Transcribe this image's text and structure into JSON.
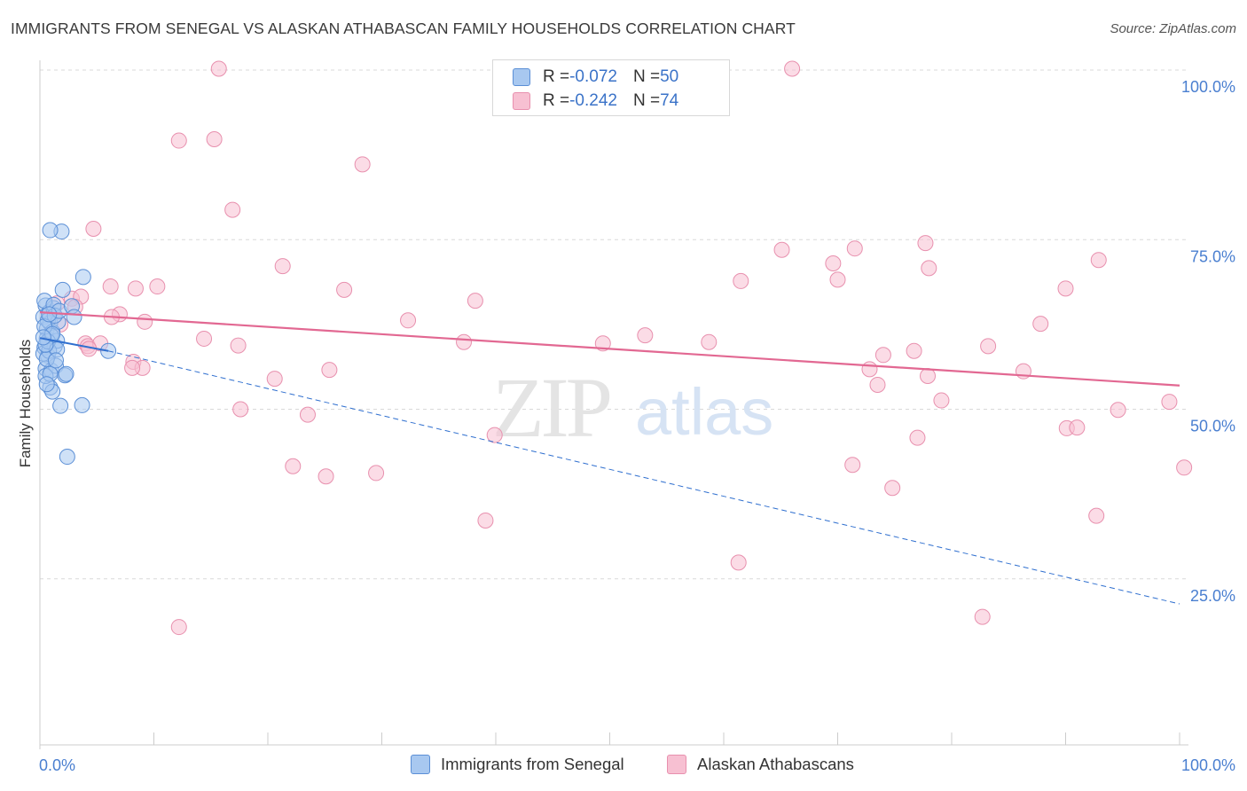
{
  "title": "IMMIGRANTS FROM SENEGAL VS ALASKAN ATHABASCAN FAMILY HOUSEHOLDS CORRELATION CHART",
  "source": "Source: ZipAtlas.com",
  "watermark": {
    "zip": "ZIP",
    "atlas": "atlas"
  },
  "legend": {
    "series1": {
      "r_label": "R = ",
      "r_value": "-0.072",
      "n_label": "N = ",
      "n_value": "50"
    },
    "series2": {
      "r_label": "R = ",
      "r_value": "-0.242",
      "n_label": "N = ",
      "n_value": "74"
    }
  },
  "colors": {
    "series1_fill": "#a8c8f0",
    "series1_stroke": "#5b8fd6",
    "series1_line": "#2f6fcf",
    "series2_fill": "#f7c0d2",
    "series2_stroke": "#e890ae",
    "series2_line": "#e26892",
    "grid": "#d9d9d9",
    "axis": "#cccccc"
  },
  "chart_data": {
    "type": "scatter",
    "title": "IMMIGRANTS FROM SENEGAL VS ALASKAN ATHABASCAN FAMILY HOUSEHOLDS CORRELATION CHART",
    "xlabel": "",
    "ylabel": "Family Households",
    "xlim": [
      0,
      100
    ],
    "ylim": [
      0,
      102
    ],
    "x_tick_labels": [
      "0.0%",
      "100.0%"
    ],
    "y_ticks": [
      25,
      50,
      75,
      100
    ],
    "y_tick_labels": [
      "25.0%",
      "50.0%",
      "75.0%",
      "100.0%"
    ],
    "grid": true,
    "legend_position": "top-center",
    "series": [
      {
        "name": "Immigrants from Senegal",
        "r": -0.072,
        "n": 50,
        "trend_solid": {
          "x": [
            0,
            6.0
          ],
          "y": [
            60.5,
            58.6
          ]
        },
        "trend_dashed": {
          "x": [
            6.0,
            100
          ],
          "y": [
            58.6,
            21.3
          ]
        },
        "points": [
          [
            0.3,
            63.6
          ],
          [
            0.5,
            65.3
          ],
          [
            0.6,
            61.8
          ],
          [
            0.4,
            59.1
          ],
          [
            0.7,
            57.9
          ],
          [
            0.5,
            56.0
          ],
          [
            0.8,
            64.3
          ],
          [
            0.9,
            62.7
          ],
          [
            0.6,
            60.4
          ],
          [
            0.3,
            58.2
          ],
          [
            1.0,
            55.7
          ],
          [
            1.2,
            64.9
          ],
          [
            0.4,
            66.0
          ],
          [
            0.7,
            63.1
          ],
          [
            1.1,
            61.4
          ],
          [
            1.3,
            59.3
          ],
          [
            0.9,
            53.2
          ],
          [
            1.1,
            52.6
          ],
          [
            1.4,
            56.4
          ],
          [
            0.5,
            54.9
          ],
          [
            1.5,
            60.1
          ],
          [
            1.6,
            62.9
          ],
          [
            0.8,
            58.6
          ],
          [
            1.2,
            65.4
          ],
          [
            0.6,
            57.4
          ],
          [
            1.0,
            60.8
          ],
          [
            1.3,
            63.8
          ],
          [
            1.7,
            64.5
          ],
          [
            0.4,
            62.2
          ],
          [
            0.9,
            55.2
          ],
          [
            1.8,
            50.5
          ],
          [
            2.2,
            55.0
          ],
          [
            2.3,
            55.2
          ],
          [
            0.7,
            60.0
          ],
          [
            1.5,
            58.8
          ],
          [
            2.0,
            67.6
          ],
          [
            2.8,
            65.2
          ],
          [
            3.0,
            63.6
          ],
          [
            1.9,
            76.2
          ],
          [
            0.9,
            76.4
          ],
          [
            3.8,
            69.5
          ],
          [
            3.7,
            50.6
          ],
          [
            2.4,
            43.0
          ],
          [
            6.0,
            58.6
          ],
          [
            0.5,
            59.5
          ],
          [
            1.1,
            61.1
          ],
          [
            0.3,
            60.6
          ],
          [
            0.8,
            64.0
          ],
          [
            1.4,
            57.2
          ],
          [
            0.6,
            53.7
          ]
        ]
      },
      {
        "name": "Alaskan Athabascans",
        "r": -0.242,
        "n": 74,
        "trend_solid": {
          "x": [
            0,
            100
          ],
          "y": [
            64.3,
            53.5
          ]
        },
        "points": [
          [
            15.7,
            100.2
          ],
          [
            66.0,
            100.2
          ],
          [
            12.2,
            89.6
          ],
          [
            15.3,
            89.8
          ],
          [
            28.3,
            86.1
          ],
          [
            16.9,
            79.4
          ],
          [
            4.7,
            76.6
          ],
          [
            21.3,
            71.1
          ],
          [
            6.2,
            68.1
          ],
          [
            8.4,
            67.8
          ],
          [
            10.3,
            68.1
          ],
          [
            26.7,
            67.6
          ],
          [
            38.2,
            66.0
          ],
          [
            2.8,
            66.3
          ],
          [
            3.6,
            66.6
          ],
          [
            1.5,
            65.6
          ],
          [
            3.1,
            65.1
          ],
          [
            7.0,
            64.0
          ],
          [
            6.3,
            63.6
          ],
          [
            9.2,
            62.9
          ],
          [
            32.3,
            63.1
          ],
          [
            1.8,
            62.5
          ],
          [
            14.4,
            60.4
          ],
          [
            4.0,
            59.7
          ],
          [
            4.2,
            59.3
          ],
          [
            5.3,
            59.7
          ],
          [
            17.4,
            59.4
          ],
          [
            37.2,
            59.9
          ],
          [
            49.4,
            59.7
          ],
          [
            53.1,
            60.9
          ],
          [
            58.7,
            59.9
          ],
          [
            61.5,
            68.9
          ],
          [
            65.1,
            73.5
          ],
          [
            69.6,
            71.5
          ],
          [
            70.0,
            69.1
          ],
          [
            71.5,
            73.7
          ],
          [
            77.7,
            74.5
          ],
          [
            78.0,
            70.8
          ],
          [
            92.9,
            72.0
          ],
          [
            90.0,
            67.8
          ],
          [
            87.8,
            62.6
          ],
          [
            83.2,
            59.3
          ],
          [
            76.7,
            58.6
          ],
          [
            74.0,
            58.0
          ],
          [
            72.8,
            55.9
          ],
          [
            73.5,
            53.6
          ],
          [
            77.9,
            54.9
          ],
          [
            79.1,
            51.3
          ],
          [
            86.3,
            55.6
          ],
          [
            94.6,
            49.9
          ],
          [
            99.1,
            51.1
          ],
          [
            100.4,
            41.4
          ],
          [
            90.1,
            47.2
          ],
          [
            91.0,
            47.3
          ],
          [
            77.0,
            45.8
          ],
          [
            71.3,
            41.8
          ],
          [
            74.8,
            38.4
          ],
          [
            92.7,
            34.3
          ],
          [
            61.3,
            27.4
          ],
          [
            82.7,
            19.4
          ],
          [
            12.2,
            17.9
          ],
          [
            8.2,
            57.0
          ],
          [
            9.0,
            56.1
          ],
          [
            20.6,
            54.5
          ],
          [
            25.4,
            55.8
          ],
          [
            17.6,
            50.0
          ],
          [
            23.5,
            49.2
          ],
          [
            39.9,
            46.2
          ],
          [
            22.2,
            41.6
          ],
          [
            25.1,
            40.1
          ],
          [
            29.5,
            40.6
          ],
          [
            39.1,
            33.6
          ],
          [
            8.1,
            56.1
          ],
          [
            4.3,
            58.9
          ]
        ]
      }
    ]
  },
  "bottom_legend": {
    "series1_label": "Immigrants from Senegal",
    "series2_label": "Alaskan Athabascans"
  }
}
